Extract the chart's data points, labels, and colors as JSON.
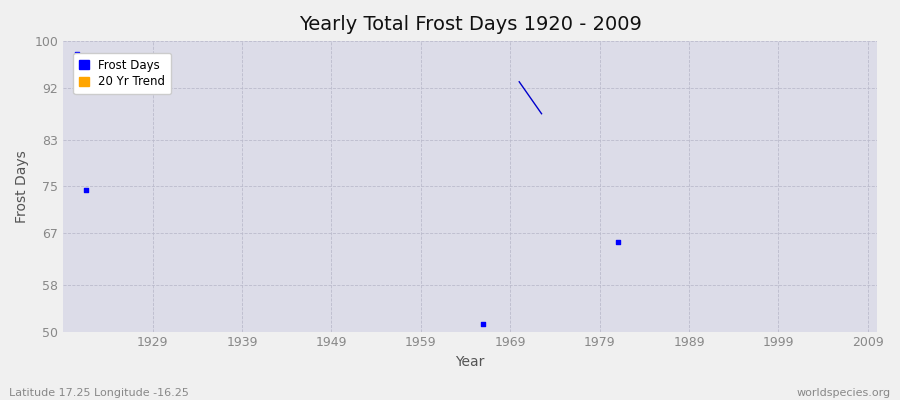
{
  "title": "Yearly Total Frost Days 1920 - 2009",
  "xlabel": "Year",
  "ylabel": "Frost Days",
  "xlim": [
    1919,
    2010
  ],
  "ylim": [
    50,
    100
  ],
  "yticks": [
    50,
    58,
    67,
    75,
    83,
    92,
    100
  ],
  "xticks": [
    1929,
    1939,
    1949,
    1959,
    1969,
    1979,
    1989,
    1999,
    2009
  ],
  "scatter_x": [
    1920.5,
    1921.5,
    1966,
    1981
  ],
  "scatter_y": [
    97.8,
    74.3,
    51.3,
    65.5
  ],
  "scatter_color": "#0000ff",
  "trend_x": [
    1970,
    1972.5
  ],
  "trend_y": [
    93.0,
    87.5
  ],
  "trend_color": "#0000cc",
  "bg_color": "#dcdce8",
  "fig_color": "#f0f0f0",
  "grid_color": "#bbbbcc",
  "legend_frost_color": "#0000ff",
  "legend_trend_color": "#ffa500",
  "title_fontsize": 14,
  "axis_label_fontsize": 10,
  "tick_fontsize": 9,
  "footer_left": "Latitude 17.25 Longitude -16.25",
  "footer_right": "worldspecies.org",
  "footer_fontsize": 8,
  "tick_color": "#888888",
  "label_color": "#555555"
}
